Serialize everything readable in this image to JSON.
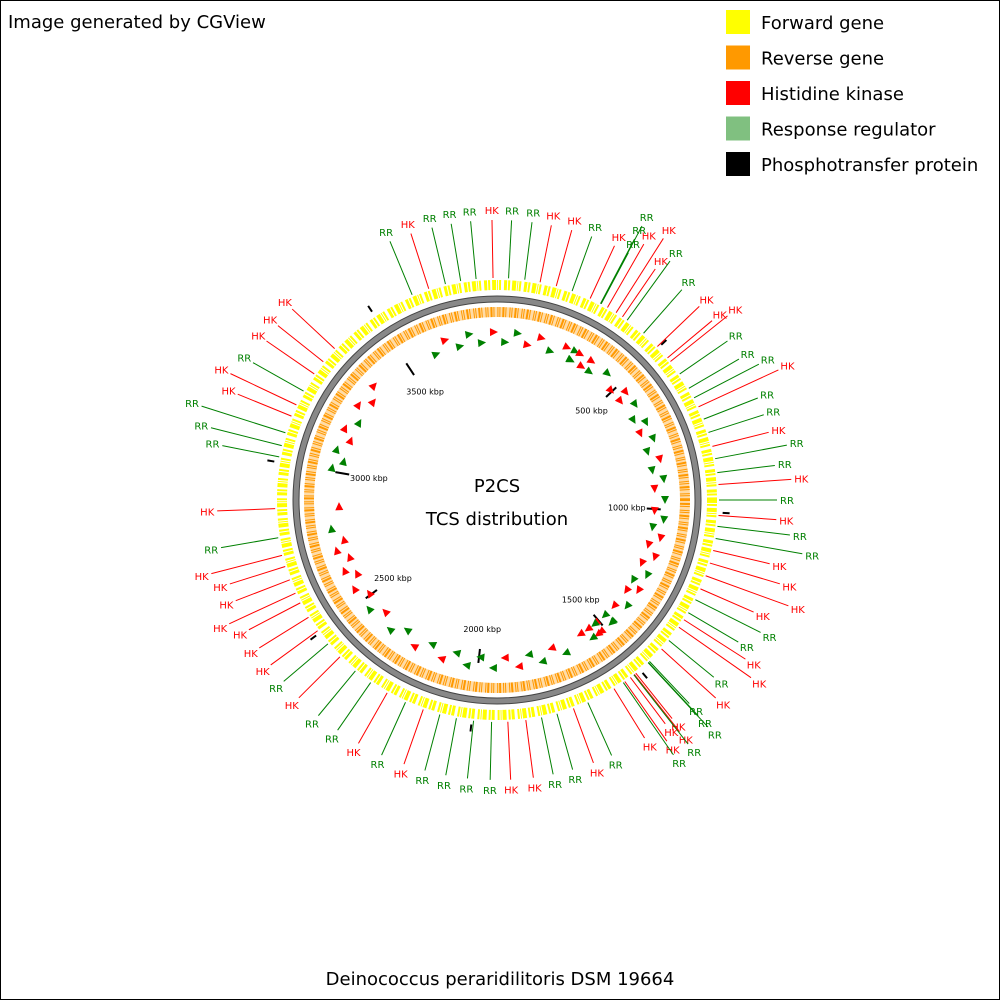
{
  "header": {
    "note": "Image generated by CGView"
  },
  "legend": [
    {
      "label": "Forward gene",
      "color": "#ffff00"
    },
    {
      "label": "Reverse gene",
      "color": "#ff9900"
    },
    {
      "label": "Histidine kinase",
      "color": "#ff0000"
    },
    {
      "label": "Response regulator",
      "color": "#80c080"
    },
    {
      "label": "Phosphotransfer protein",
      "color": "#000000"
    }
  ],
  "map": {
    "title": "P2CS",
    "subtitle": "TCS distribution",
    "caption": "Deinococcus peraridilitoris DSM 19664",
    "range": [
      0,
      3860
    ],
    "ticks": [
      {
        "value": 500,
        "label": "500 kbp"
      },
      {
        "value": 1000,
        "label": "1000 kbp"
      },
      {
        "value": 1500,
        "label": "1500 kbp"
      },
      {
        "value": 2000,
        "label": "2000 kbp"
      },
      {
        "value": 2500,
        "label": "2500 kbp"
      },
      {
        "value": 3000,
        "label": "3000 kbp"
      },
      {
        "value": 3500,
        "label": "3500 kbp"
      }
    ],
    "features": [
      {
        "label": "RR",
        "color": "#008000",
        "position": 32
      },
      {
        "label": "RR",
        "color": "#008000",
        "position": 77
      },
      {
        "label": "HK",
        "color": "#ff0000",
        "position": 120
      },
      {
        "label": "HK",
        "color": "#ff0000",
        "position": 166
      },
      {
        "label": "RR",
        "color": "#008000",
        "position": 212
      },
      {
        "label": "HK",
        "color": "#ff0000",
        "position": 266
      },
      {
        "label": "RR",
        "color": "#008000",
        "position": 298
      },
      {
        "label": "RR",
        "color": "#008000",
        "position": 299
      },
      {
        "label": "RR",
        "color": "#008000",
        "position": 300
      },
      {
        "label": "HK",
        "color": "#ff0000",
        "position": 320
      },
      {
        "label": "HK",
        "color": "#ff0000",
        "position": 348
      },
      {
        "label": "HK",
        "color": "#ff0000",
        "position": 369
      },
      {
        "label": "RR",
        "color": "#008000",
        "position": 385
      },
      {
        "label": "RR",
        "color": "#008000",
        "position": 443
      },
      {
        "label": "HK",
        "color": "#ff0000",
        "position": 496
      },
      {
        "label": "HK",
        "color": "#ff0000",
        "position": 538
      },
      {
        "label": "HK",
        "color": "#ff0000",
        "position": 551
      },
      {
        "label": "RR",
        "color": "#008000",
        "position": 594
      },
      {
        "label": "RR",
        "color": "#008000",
        "position": 641
      },
      {
        "label": "RR",
        "color": "#008000",
        "position": 671
      },
      {
        "label": "HK",
        "color": "#ff0000",
        "position": 699
      },
      {
        "label": "RR",
        "color": "#008000",
        "position": 736
      },
      {
        "label": "RR",
        "color": "#008000",
        "position": 775
      },
      {
        "label": "HK",
        "color": "#ff0000",
        "position": 815
      },
      {
        "label": "RR",
        "color": "#008000",
        "position": 850
      },
      {
        "label": "RR",
        "color": "#008000",
        "position": 889
      },
      {
        "label": "HK",
        "color": "#ff0000",
        "position": 922
      },
      {
        "label": "RR",
        "color": "#008000",
        "position": 965
      },
      {
        "label": "HK",
        "color": "#ff0000",
        "position": 1008
      },
      {
        "label": "RR",
        "color": "#008000",
        "position": 1038
      },
      {
        "label": "RR",
        "color": "#008000",
        "position": 1072
      },
      {
        "label": "HK",
        "color": "#ff0000",
        "position": 1106
      },
      {
        "label": "HK",
        "color": "#ff0000",
        "position": 1142
      },
      {
        "label": "HK",
        "color": "#ff0000",
        "position": 1179
      },
      {
        "label": "HK",
        "color": "#ff0000",
        "position": 1218
      },
      {
        "label": "RR",
        "color": "#008000",
        "position": 1251
      },
      {
        "label": "RR",
        "color": "#008000",
        "position": 1292
      },
      {
        "label": "HK",
        "color": "#ff0000",
        "position": 1315
      },
      {
        "label": "HK",
        "color": "#ff0000",
        "position": 1340
      },
      {
        "label": "RR",
        "color": "#008000",
        "position": 1386
      },
      {
        "label": "HK",
        "color": "#ff0000",
        "position": 1417
      },
      {
        "label": "RR",
        "color": "#008000",
        "position": 1465
      },
      {
        "label": "RR",
        "color": "#008000",
        "position": 1469
      },
      {
        "label": "RR",
        "color": "#008000",
        "position": 1470
      },
      {
        "label": "HK",
        "color": "#ff0000",
        "position": 1515
      },
      {
        "label": "HK",
        "color": "#ff0000",
        "position": 1520
      },
      {
        "label": "RR",
        "color": "#008000",
        "position": 1522
      },
      {
        "label": "HK",
        "color": "#ff0000",
        "position": 1534
      },
      {
        "label": "HK",
        "color": "#ff0000",
        "position": 1553
      },
      {
        "label": "RR",
        "color": "#008000",
        "position": 1558
      },
      {
        "label": "HK",
        "color": "#ff0000",
        "position": 1589
      },
      {
        "label": "RR",
        "color": "#008000",
        "position": 1671
      },
      {
        "label": "HK",
        "color": "#ff0000",
        "position": 1714
      },
      {
        "label": "RR",
        "color": "#008000",
        "position": 1762
      },
      {
        "label": "RR",
        "color": "#008000",
        "position": 1806
      },
      {
        "label": "HK",
        "color": "#ff0000",
        "position": 1850
      },
      {
        "label": "HK",
        "color": "#ff0000",
        "position": 1900
      },
      {
        "label": "RR",
        "color": "#008000",
        "position": 1945
      },
      {
        "label": "RR",
        "color": "#008000",
        "position": 1995
      },
      {
        "label": "RR",
        "color": "#008000",
        "position": 2043
      },
      {
        "label": "RR",
        "color": "#008000",
        "position": 2090
      },
      {
        "label": "HK",
        "color": "#ff0000",
        "position": 2138
      },
      {
        "label": "RR",
        "color": "#008000",
        "position": 2191
      },
      {
        "label": "HK",
        "color": "#ff0000",
        "position": 2248
      },
      {
        "label": "RR",
        "color": "#008000",
        "position": 2302
      },
      {
        "label": "RR",
        "color": "#008000",
        "position": 2355
      },
      {
        "label": "HK",
        "color": "#ff0000",
        "position": 2413
      },
      {
        "label": "RR",
        "color": "#008000",
        "position": 2462
      },
      {
        "label": "HK",
        "color": "#ff0000",
        "position": 2508
      },
      {
        "label": "HK",
        "color": "#ff0000",
        "position": 2553
      },
      {
        "label": "HK",
        "color": "#ff0000",
        "position": 2599
      },
      {
        "label": "HK",
        "color": "#ff0000",
        "position": 2629
      },
      {
        "label": "HK",
        "color": "#ff0000",
        "position": 2669
      },
      {
        "label": "HK",
        "color": "#ff0000",
        "position": 2708
      },
      {
        "label": "HK",
        "color": "#ff0000",
        "position": 2740
      },
      {
        "label": "RR",
        "color": "#008000",
        "position": 2790
      },
      {
        "label": "HK",
        "color": "#ff0000",
        "position": 2871
      },
      {
        "label": "RR",
        "color": "#008000",
        "position": 3015
      },
      {
        "label": "RR",
        "color": "#008000",
        "position": 3047
      },
      {
        "label": "RR",
        "color": "#008000",
        "position": 3084
      },
      {
        "label": "HK",
        "color": "#ff0000",
        "position": 3133
      },
      {
        "label": "HK",
        "color": "#ff0000",
        "position": 3167
      },
      {
        "label": "RR",
        "color": "#008000",
        "position": 3210
      },
      {
        "label": "HK",
        "color": "#ff0000",
        "position": 3266
      },
      {
        "label": "HK",
        "color": "#ff0000",
        "position": 3308
      },
      {
        "label": "HK",
        "color": "#ff0000",
        "position": 3356
      },
      {
        "label": "RR",
        "color": "#008000",
        "position": 3619
      },
      {
        "label": "HK",
        "color": "#ff0000",
        "position": 3668
      },
      {
        "label": "RR",
        "color": "#008000",
        "position": 3716
      },
      {
        "label": "RR",
        "color": "#008000",
        "position": 3759
      },
      {
        "label": "RR",
        "color": "#008000",
        "position": 3802
      },
      {
        "label": "HK",
        "color": "#ff0000",
        "position": 3849
      }
    ]
  }
}
